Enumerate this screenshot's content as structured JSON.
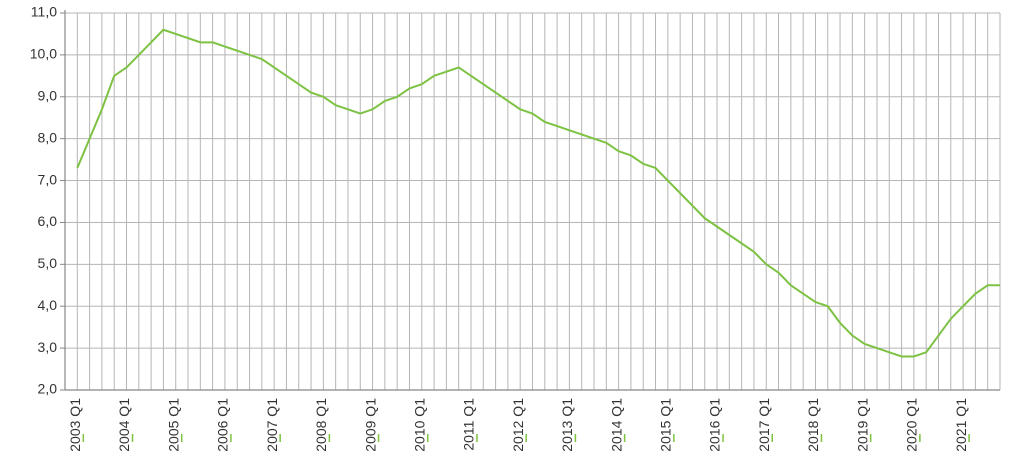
{
  "chart_data": {
    "type": "line",
    "categories": [
      "2003 Q1",
      null,
      null,
      null,
      "2004 Q1",
      null,
      null,
      null,
      "2005 Q1",
      null,
      null,
      null,
      "2006 Q1",
      null,
      null,
      null,
      "2007 Q1",
      null,
      null,
      null,
      "2008 Q1",
      null,
      null,
      null,
      "2009 Q1",
      null,
      null,
      null,
      "2010 Q1",
      null,
      null,
      null,
      "2011 Q1",
      null,
      null,
      null,
      "2012 Q1",
      null,
      null,
      null,
      "2013 Q1",
      null,
      null,
      null,
      "2014 Q1",
      null,
      null,
      null,
      "2015 Q1",
      null,
      null,
      null,
      "2016 Q1",
      null,
      null,
      null,
      "2017 Q1",
      null,
      null,
      null,
      "2018 Q1",
      null,
      null,
      null,
      "2019 Q1",
      null,
      null,
      null,
      "2020 Q1",
      null,
      null,
      null,
      "2021 Q1",
      null,
      null,
      null
    ],
    "series": [
      {
        "color": "#7dc242",
        "values": [
          7.3,
          8.0,
          8.7,
          9.5,
          9.7,
          10.0,
          10.3,
          10.6,
          10.5,
          10.4,
          10.3,
          10.3,
          10.2,
          10.1,
          10.0,
          9.9,
          9.7,
          9.5,
          9.3,
          9.1,
          9.0,
          8.8,
          8.7,
          8.6,
          8.7,
          8.9,
          9.0,
          9.2,
          9.3,
          9.5,
          9.6,
          9.7,
          9.5,
          9.3,
          9.1,
          8.9,
          8.7,
          8.6,
          8.4,
          8.3,
          8.2,
          8.1,
          8.0,
          7.9,
          7.7,
          7.6,
          7.4,
          7.3,
          7.0,
          6.7,
          6.4,
          6.1,
          5.9,
          5.7,
          5.5,
          5.3,
          5.0,
          4.8,
          4.5,
          4.3,
          4.1,
          4.0,
          3.6,
          3.3,
          3.1,
          3.0,
          2.9,
          2.8,
          2.8,
          2.9,
          3.3,
          3.7,
          4.0,
          4.3,
          4.5,
          4.5
        ]
      }
    ],
    "ylim": [
      2,
      11
    ],
    "yticks": [
      {
        "value": 2,
        "label": "2,0"
      },
      {
        "value": 3,
        "label": "3,0"
      },
      {
        "value": 4,
        "label": "4,0"
      },
      {
        "value": 5,
        "label": "5,0"
      },
      {
        "value": 6,
        "label": "6,0"
      },
      {
        "value": 7,
        "label": "7,0"
      },
      {
        "value": 8,
        "label": "8,0"
      },
      {
        "value": 9,
        "label": "9,0"
      },
      {
        "value": 10,
        "label": "10,0"
      },
      {
        "value": 11,
        "label": "11,0"
      }
    ],
    "grid": true
  }
}
